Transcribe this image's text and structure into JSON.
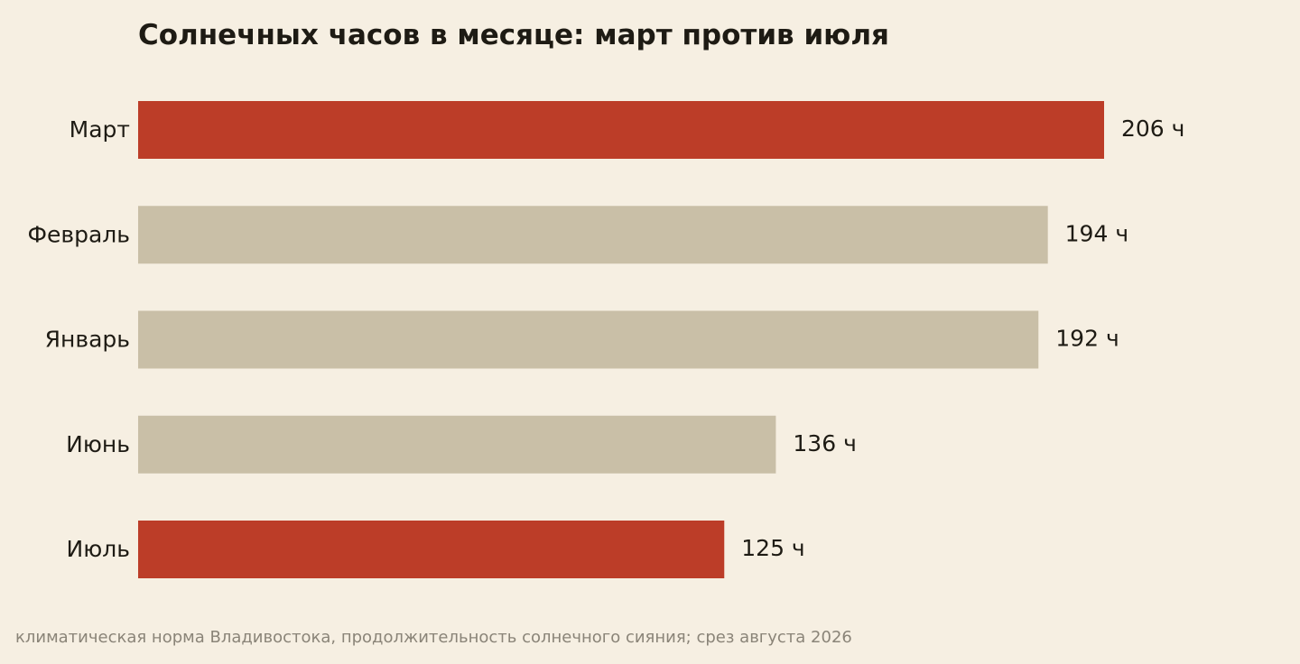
{
  "chart_data": {
    "type": "bar",
    "orientation": "horizontal",
    "title": "Солнечных часов в месяце: март против июля",
    "categories": [
      "Март",
      "Февраль",
      "Январь",
      "Июнь",
      "Июль"
    ],
    "values": [
      206,
      194,
      192,
      136,
      125
    ],
    "value_labels": [
      "206 ч",
      "194 ч",
      "192 ч",
      "136 ч",
      "125 ч"
    ],
    "highlighted": [
      true,
      false,
      false,
      false,
      true
    ],
    "unit": "ч",
    "xlim": [
      0,
      206
    ],
    "grid": false,
    "legend": "none",
    "colors": {
      "highlight": "#bc3d28",
      "default": "#c9bfa7",
      "background": "#f6efe2",
      "text": "#1e1b14"
    }
  },
  "footnote": "климатическая норма Владивостока, продолжительность солнечного сияния; срез августа 2026"
}
